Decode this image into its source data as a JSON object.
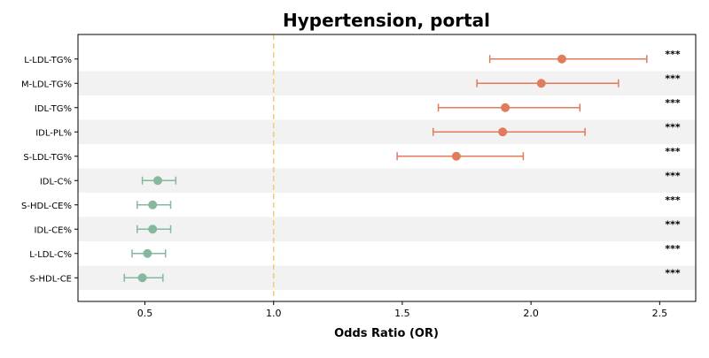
{
  "chart_data": {
    "type": "forest",
    "title": "Hypertension, portal",
    "xlabel": "Odds Ratio (OR)",
    "xlim": [
      0.24,
      2.64
    ],
    "xticks": [
      0.5,
      1.0,
      1.5,
      2.0,
      2.5
    ],
    "xtick_labels": [
      "0.5",
      "1.0",
      "1.5",
      "2.0",
      "2.5"
    ],
    "reference_line": 1.0,
    "reference_color": "#f5c97a",
    "positive_color": "#e07b5c",
    "negative_color": "#86b89e",
    "band_color": "#f2f2f2",
    "rows": [
      {
        "label": "L-LDL-TG%",
        "or": 2.12,
        "lo": 1.84,
        "hi": 2.45,
        "sig": "***"
      },
      {
        "label": "M-LDL-TG%",
        "or": 2.04,
        "lo": 1.79,
        "hi": 2.34,
        "sig": "***"
      },
      {
        "label": "IDL-TG%",
        "or": 1.9,
        "lo": 1.64,
        "hi": 2.19,
        "sig": "***"
      },
      {
        "label": "IDL-PL%",
        "or": 1.89,
        "lo": 1.62,
        "hi": 2.21,
        "sig": "***"
      },
      {
        "label": "S-LDL-TG%",
        "or": 1.71,
        "lo": 1.48,
        "hi": 1.97,
        "sig": "***"
      },
      {
        "label": "IDL-C%",
        "or": 0.55,
        "lo": 0.49,
        "hi": 0.62,
        "sig": "***"
      },
      {
        "label": "S-HDL-CE%",
        "or": 0.53,
        "lo": 0.47,
        "hi": 0.6,
        "sig": "***"
      },
      {
        "label": "IDL-CE%",
        "or": 0.53,
        "lo": 0.47,
        "hi": 0.6,
        "sig": "***"
      },
      {
        "label": "L-LDL-C%",
        "or": 0.51,
        "lo": 0.45,
        "hi": 0.58,
        "sig": "***"
      },
      {
        "label": "S-HDL-CE",
        "or": 0.49,
        "lo": 0.42,
        "hi": 0.57,
        "sig": "***"
      }
    ]
  }
}
